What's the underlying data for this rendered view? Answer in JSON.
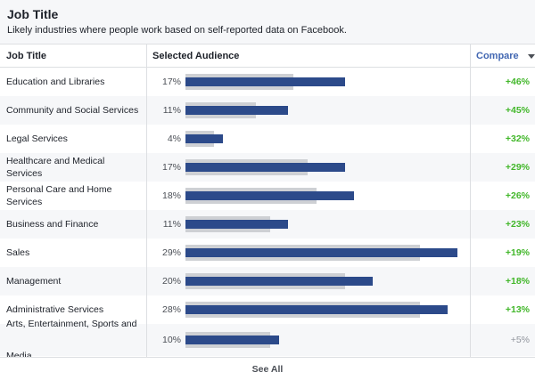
{
  "header": {
    "title": "Job Title",
    "subtitle": "Likely industries where people work based on self-reported data on Facebook."
  },
  "table": {
    "columns": {
      "job_title": "Job Title",
      "selected_audience": "Selected Audience",
      "compare": "Compare"
    },
    "rows": [
      {
        "label": "Education and Libraries",
        "percent": "17%",
        "selected": 17,
        "baseline": 11.5,
        "compare": "+46%",
        "compare_status": "positive"
      },
      {
        "label": "Community and Social Services",
        "percent": "11%",
        "selected": 11,
        "baseline": 7.5,
        "compare": "+45%",
        "compare_status": "positive"
      },
      {
        "label": "Legal Services",
        "percent": "4%",
        "selected": 4,
        "baseline": 3,
        "compare": "+32%",
        "compare_status": "positive"
      },
      {
        "label": "Healthcare and Medical Services",
        "percent": "17%",
        "selected": 17,
        "baseline": 13,
        "compare": "+29%",
        "compare_status": "positive"
      },
      {
        "label": "Personal Care and Home Services",
        "percent": "18%",
        "selected": 18,
        "baseline": 14,
        "compare": "+26%",
        "compare_status": "positive"
      },
      {
        "label": "Business and Finance",
        "percent": "11%",
        "selected": 11,
        "baseline": 9,
        "compare": "+23%",
        "compare_status": "positive"
      },
      {
        "label": "Sales",
        "percent": "29%",
        "selected": 29,
        "baseline": 25,
        "compare": "+19%",
        "compare_status": "positive"
      },
      {
        "label": "Management",
        "percent": "20%",
        "selected": 20,
        "baseline": 17,
        "compare": "+18%",
        "compare_status": "positive"
      },
      {
        "label": "Administrative Services",
        "percent": "28%",
        "selected": 28,
        "baseline": 25,
        "compare": "+13%",
        "compare_status": "positive"
      },
      {
        "label": "Arts, Entertainment, Sports and Media",
        "percent": "10%",
        "selected": 10,
        "baseline": 9,
        "compare": "+5%",
        "compare_status": "neutral"
      }
    ]
  },
  "footer": {
    "see_all": "See All"
  },
  "colors": {
    "bar_selected": "#2c4a8a",
    "bar_baseline": "#ced0d4",
    "compare_positive": "#42b72a",
    "compare_neutral": "#90949c",
    "link": "#4267b2"
  },
  "icons": {
    "sort": "caret-down-icon"
  }
}
